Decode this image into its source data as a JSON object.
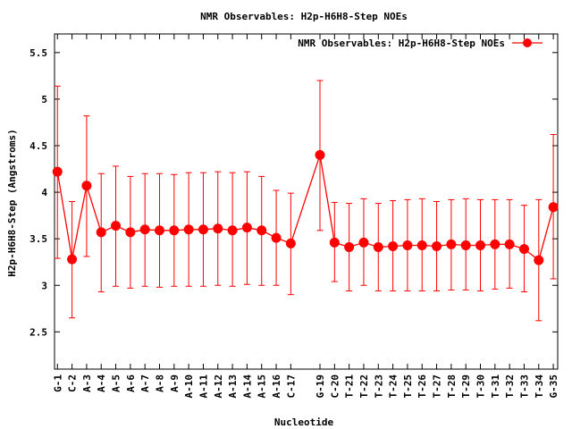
{
  "chart_data": {
    "type": "line",
    "title": "NMR Observables: H2p-H6H8-Step NOEs",
    "xlabel": "Nucleotide",
    "ylabel": "H2p-H6H8-Step (Angstroms)",
    "ylim": [
      2.1,
      5.7
    ],
    "yticks": [
      2.5,
      3,
      3.5,
      4,
      4.5,
      5,
      5.5
    ],
    "ytick_labels": [
      "2.5",
      "3",
      "3.5",
      "4",
      "4.5",
      "5",
      "5.5"
    ],
    "grid": false,
    "legend_position": "top-right",
    "color": "#ff0000",
    "series": [
      {
        "name": "NMR Observables: H2p-H6H8-Step NOEs",
        "points": [
          {
            "x": 1,
            "label": "G-1",
            "y": 4.22,
            "lo": 3.29,
            "hi": 5.14
          },
          {
            "x": 2,
            "label": "C-2",
            "y": 3.28,
            "lo": 2.65,
            "hi": 3.9
          },
          {
            "x": 3,
            "label": "A-3",
            "y": 4.07,
            "lo": 3.31,
            "hi": 4.82
          },
          {
            "x": 4,
            "label": "A-4",
            "y": 3.57,
            "lo": 2.93,
            "hi": 4.2
          },
          {
            "x": 5,
            "label": "A-5",
            "y": 3.64,
            "lo": 2.99,
            "hi": 4.28
          },
          {
            "x": 6,
            "label": "A-6",
            "y": 3.57,
            "lo": 2.97,
            "hi": 4.17
          },
          {
            "x": 7,
            "label": "A-7",
            "y": 3.6,
            "lo": 2.99,
            "hi": 4.2
          },
          {
            "x": 8,
            "label": "A-8",
            "y": 3.59,
            "lo": 2.98,
            "hi": 4.2
          },
          {
            "x": 9,
            "label": "A-9",
            "y": 3.59,
            "lo": 2.99,
            "hi": 4.19
          },
          {
            "x": 10,
            "label": "A-10",
            "y": 3.6,
            "lo": 2.99,
            "hi": 4.21
          },
          {
            "x": 11,
            "label": "A-11",
            "y": 3.6,
            "lo": 2.99,
            "hi": 4.21
          },
          {
            "x": 12,
            "label": "A-12",
            "y": 3.61,
            "lo": 3.0,
            "hi": 4.22
          },
          {
            "x": 13,
            "label": "A-13",
            "y": 3.59,
            "lo": 2.99,
            "hi": 4.21
          },
          {
            "x": 14,
            "label": "A-14",
            "y": 3.62,
            "lo": 3.01,
            "hi": 4.22
          },
          {
            "x": 15,
            "label": "A-15",
            "y": 3.59,
            "lo": 3.0,
            "hi": 4.17
          },
          {
            "x": 16,
            "label": "A-16",
            "y": 3.51,
            "lo": 3.0,
            "hi": 4.02
          },
          {
            "x": 17,
            "label": "C-17",
            "y": 3.45,
            "lo": 2.9,
            "hi": 3.99
          },
          {
            "x": 19,
            "label": "G-19",
            "y": 4.4,
            "lo": 3.59,
            "hi": 5.2
          },
          {
            "x": 20,
            "label": "C-20",
            "y": 3.46,
            "lo": 3.04,
            "hi": 3.89
          },
          {
            "x": 21,
            "label": "T-21",
            "y": 3.41,
            "lo": 2.94,
            "hi": 3.88
          },
          {
            "x": 22,
            "label": "T-22",
            "y": 3.46,
            "lo": 3.0,
            "hi": 3.93
          },
          {
            "x": 23,
            "label": "T-23",
            "y": 3.41,
            "lo": 2.94,
            "hi": 3.88
          },
          {
            "x": 24,
            "label": "T-24",
            "y": 3.42,
            "lo": 2.94,
            "hi": 3.91
          },
          {
            "x": 25,
            "label": "T-25",
            "y": 3.43,
            "lo": 2.94,
            "hi": 3.92
          },
          {
            "x": 26,
            "label": "T-26",
            "y": 3.43,
            "lo": 2.94,
            "hi": 3.93
          },
          {
            "x": 27,
            "label": "T-27",
            "y": 3.42,
            "lo": 2.94,
            "hi": 3.9
          },
          {
            "x": 28,
            "label": "T-28",
            "y": 3.44,
            "lo": 2.95,
            "hi": 3.92
          },
          {
            "x": 29,
            "label": "T-29",
            "y": 3.43,
            "lo": 2.95,
            "hi": 3.93
          },
          {
            "x": 30,
            "label": "T-30",
            "y": 3.43,
            "lo": 2.94,
            "hi": 3.92
          },
          {
            "x": 31,
            "label": "T-31",
            "y": 3.44,
            "lo": 2.96,
            "hi": 3.92
          },
          {
            "x": 32,
            "label": "T-32",
            "y": 3.44,
            "lo": 2.97,
            "hi": 3.92
          },
          {
            "x": 33,
            "label": "T-33",
            "y": 3.39,
            "lo": 2.93,
            "hi": 3.86
          },
          {
            "x": 34,
            "label": "T-34",
            "y": 3.27,
            "lo": 2.62,
            "hi": 3.92
          },
          {
            "x": 35,
            "label": "G-35",
            "y": 3.84,
            "lo": 3.07,
            "hi": 4.62
          }
        ]
      }
    ]
  }
}
